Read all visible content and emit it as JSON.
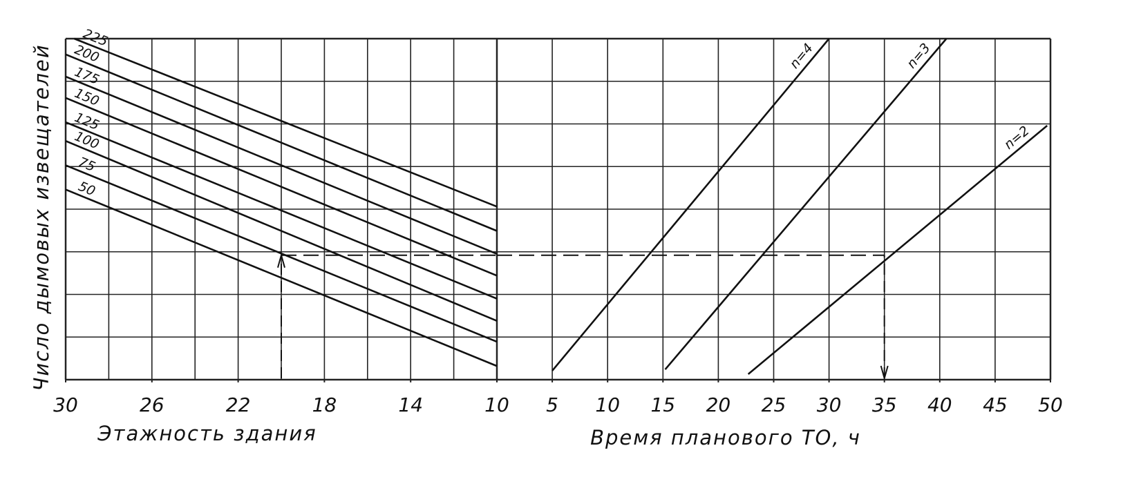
{
  "chart_data": [
    {
      "type": "line",
      "xlabel": "Этажность здания",
      "ylabel": "Число дымовых извещателей",
      "xlim": [
        30,
        10
      ],
      "ylim": [
        0,
        8
      ],
      "xticks": [
        30,
        26,
        22,
        18,
        14,
        10
      ],
      "color": "#111111",
      "series": [
        {
          "name": "225",
          "x": [
            29.6,
            10
          ],
          "values": [
            8,
            4.06
          ]
        },
        {
          "name": "200",
          "x": [
            30,
            10
          ],
          "values": [
            7.63,
            3.49
          ]
        },
        {
          "name": "175",
          "x": [
            30,
            10
          ],
          "values": [
            7.11,
            2.95
          ]
        },
        {
          "name": "150",
          "x": [
            30,
            10
          ],
          "values": [
            6.61,
            2.44
          ]
        },
        {
          "name": "125",
          "x": [
            30,
            10
          ],
          "values": [
            6.04,
            1.9
          ]
        },
        {
          "name": "100",
          "x": [
            30,
            10
          ],
          "values": [
            5.6,
            1.38
          ]
        },
        {
          "name": "75",
          "x": [
            30,
            10
          ],
          "values": [
            5.03,
            0.89
          ]
        },
        {
          "name": "50",
          "x": [
            30,
            10
          ],
          "values": [
            4.46,
            0.32
          ]
        }
      ],
      "guide": {
        "x": 20,
        "y": 2.92
      }
    },
    {
      "type": "line",
      "xlabel": "Время планового ТО, ч",
      "xlim": [
        0,
        50
      ],
      "ylim": [
        0,
        8
      ],
      "xticks": [
        5,
        10,
        15,
        20,
        25,
        30,
        35,
        40,
        45,
        50
      ],
      "color": "#111111",
      "series": [
        {
          "name": "n=4",
          "x": [
            5,
            30
          ],
          "values": [
            0.21,
            8
          ]
        },
        {
          "name": "n=3",
          "x": [
            15.2,
            40.6
          ],
          "values": [
            0.24,
            8
          ]
        },
        {
          "name": "n=2",
          "x": [
            22.7,
            49.7
          ],
          "values": [
            0.13,
            5.96
          ]
        }
      ],
      "guide": {
        "x": 35,
        "y": 2.92
      }
    }
  ]
}
